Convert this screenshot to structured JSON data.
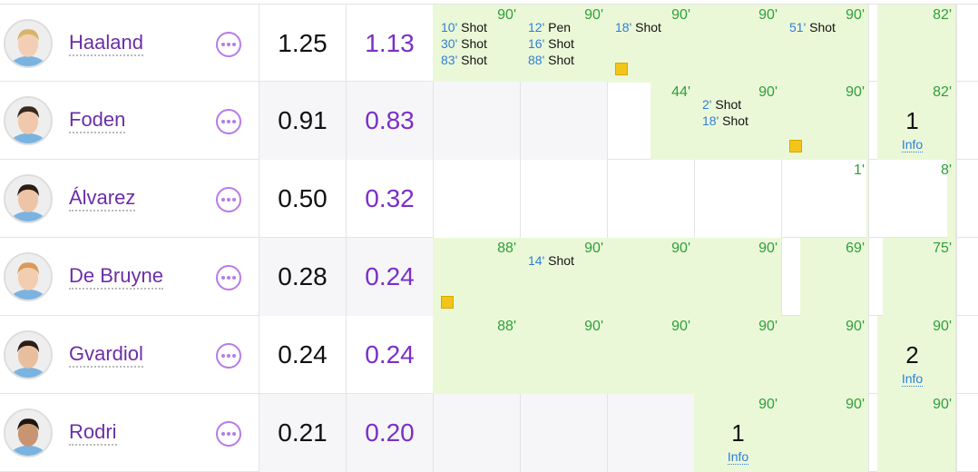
{
  "rows": [
    {
      "name": "Haaland",
      "stat_a": "1.25",
      "stat_b": "1.13",
      "shade": false,
      "skin": "#f2cfb4",
      "hair": "#d8b36a",
      "cells": [
        {
          "mins": "90'",
          "fill": 1,
          "events": [
            {
              "m": "10'",
              "t": "Shot"
            },
            {
              "m": "30'",
              "t": "Shot"
            },
            {
              "m": "83'",
              "t": "Shot"
            }
          ]
        },
        {
          "mins": "90'",
          "fill": 1,
          "events": [
            {
              "m": "12'",
              "t": "Pen"
            },
            {
              "m": "16'",
              "t": "Shot"
            },
            {
              "m": "88'",
              "t": "Shot"
            }
          ]
        },
        {
          "mins": "90'",
          "fill": 1,
          "events": [
            {
              "m": "18'",
              "t": "Shot"
            }
          ],
          "card": true
        },
        {
          "mins": "90'",
          "fill": 1,
          "events": []
        },
        {
          "mins": "90'",
          "fill": 1,
          "events": [
            {
              "m": "51'",
              "t": "Shot"
            }
          ]
        },
        {
          "mins": "82'",
          "fill": 0.9,
          "events": []
        }
      ]
    },
    {
      "name": "Foden",
      "stat_a": "0.91",
      "stat_b": "0.83",
      "shade": true,
      "skin": "#f0c9ad",
      "hair": "#3a2a1e",
      "cells": [
        {
          "mins": "",
          "fill": 0,
          "events": []
        },
        {
          "mins": "",
          "fill": 0,
          "events": []
        },
        {
          "mins": "44'",
          "fill": 0.5,
          "events": []
        },
        {
          "mins": "90'",
          "fill": 1,
          "events": [
            {
              "m": "2'",
              "t": "Shot"
            },
            {
              "m": "18'",
              "t": "Shot"
            }
          ]
        },
        {
          "mins": "90'",
          "fill": 1,
          "events": [],
          "card": true
        },
        {
          "mins": "82'",
          "fill": 0.9,
          "events": [],
          "big": "1",
          "info": "Info"
        }
      ]
    },
    {
      "name": "Álvarez",
      "stat_a": "0.50",
      "stat_b": "0.32",
      "shade": false,
      "white": true,
      "skin": "#edc5a6",
      "hair": "#2b1d14",
      "cells": [
        {
          "mins": "",
          "fill": 0,
          "events": []
        },
        {
          "mins": "",
          "fill": 0,
          "events": []
        },
        {
          "mins": "",
          "fill": 0,
          "events": []
        },
        {
          "mins": "",
          "fill": 0,
          "events": []
        },
        {
          "mins": "1'",
          "fill": 0.01,
          "events": []
        },
        {
          "mins": "8'",
          "fill": 0.09,
          "events": []
        }
      ]
    },
    {
      "name": "De Bruyne",
      "stat_a": "0.28",
      "stat_b": "0.24",
      "shade": true,
      "skin": "#f2cdb0",
      "hair": "#d99a5a",
      "cells": [
        {
          "mins": "88'",
          "fill": 1,
          "events": [],
          "card": true
        },
        {
          "mins": "90'",
          "fill": 1,
          "events": [
            {
              "m": "14'",
              "t": "Shot"
            }
          ]
        },
        {
          "mins": "90'",
          "fill": 1,
          "events": []
        },
        {
          "mins": "90'",
          "fill": 1,
          "events": []
        },
        {
          "mins": "69'",
          "fill": 0.78,
          "events": []
        },
        {
          "mins": "75'",
          "fill": 0.83,
          "events": []
        }
      ]
    },
    {
      "name": "Gvardiol",
      "stat_a": "0.24",
      "stat_b": "0.24",
      "shade": false,
      "skin": "#e8bf9e",
      "hair": "#2a1d15",
      "cells": [
        {
          "mins": "88'",
          "fill": 1,
          "events": []
        },
        {
          "mins": "90'",
          "fill": 1,
          "events": []
        },
        {
          "mins": "90'",
          "fill": 1,
          "events": []
        },
        {
          "mins": "90'",
          "fill": 1,
          "events": []
        },
        {
          "mins": "90'",
          "fill": 1,
          "events": []
        },
        {
          "mins": "90'",
          "fill": 0.9,
          "events": [],
          "big": "2",
          "info": "Info"
        }
      ]
    },
    {
      "name": "Rodri",
      "stat_a": "0.21",
      "stat_b": "0.20",
      "shade": true,
      "skin": "#c99472",
      "hair": "#1f1510",
      "cells": [
        {
          "mins": "",
          "fill": 0,
          "events": []
        },
        {
          "mins": "",
          "fill": 0,
          "events": []
        },
        {
          "mins": "",
          "fill": 0,
          "events": []
        },
        {
          "mins": "90'",
          "fill": 1,
          "events": [],
          "big": "1",
          "info": "Info"
        },
        {
          "mins": "90'",
          "fill": 1,
          "events": []
        },
        {
          "mins": "90'",
          "fill": 0.9,
          "events": []
        }
      ]
    }
  ]
}
